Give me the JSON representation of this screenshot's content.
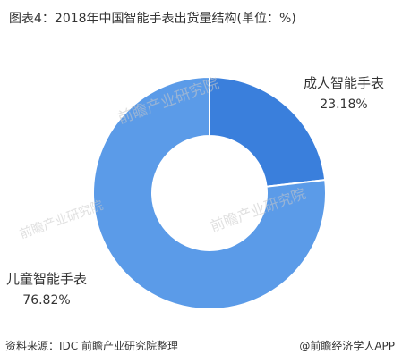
{
  "chart_data": {
    "type": "pie",
    "variant": "donut",
    "title": "图表4：2018年中国智能手表出货量结构(单位：%)",
    "slices": [
      {
        "label": "成人智能手表",
        "value": 23.18,
        "value_label": "23.18%",
        "color": "#3a7fdc"
      },
      {
        "label": "儿童智能手表",
        "value": 76.82,
        "value_label": "76.82%",
        "color": "#5b9be8"
      }
    ]
  },
  "footer": {
    "source": "资料来源：IDC 前瞻产业研究院整理",
    "brand": "@前瞻经济学人APP"
  },
  "watermark": {
    "text": "前瞻产业研究院",
    "color": "#c8c8c8"
  }
}
